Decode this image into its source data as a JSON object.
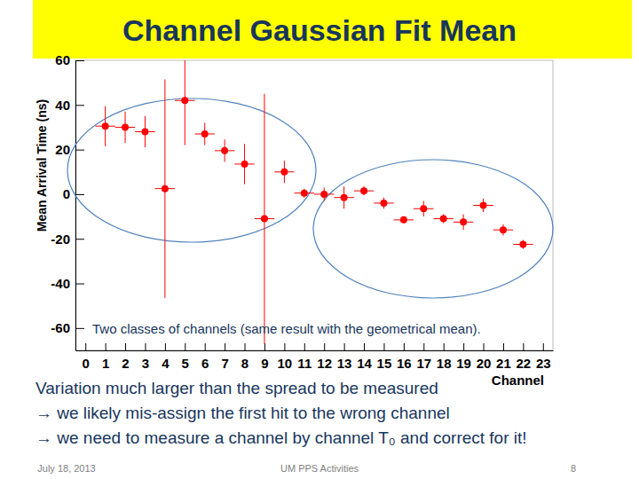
{
  "chart_data": {
    "type": "scatter",
    "title": "Channel Gaussian Fit Mean",
    "x_label": "Channel",
    "y_label": "Mean Arrival Time (ns)",
    "annotation": "Two classes of channels (same result with the geometrical mean).",
    "x": [
      1,
      2,
      3,
      4,
      5,
      6,
      7,
      8,
      9,
      10,
      11,
      12,
      13,
      14,
      15,
      16,
      17,
      18,
      19,
      20,
      21,
      22
    ],
    "values": [
      30.5,
      30,
      28,
      2.5,
      42,
      27,
      19.5,
      13.5,
      -11,
      10,
      0.5,
      0,
      -1.5,
      1.5,
      -4,
      -11.5,
      -6.5,
      -11,
      -12.5,
      -5,
      -16,
      -22.5
    ],
    "errors": [
      9,
      7,
      7,
      49,
      20,
      5,
      5,
      9,
      56,
      5,
      2,
      3,
      5,
      2,
      2.5,
      1.5,
      3.5,
      2,
      3.5,
      3,
      2.5,
      2
    ],
    "x_errors": [
      0.5,
      0.5,
      0.5,
      0.5,
      0.5,
      0.5,
      0.5,
      0.5,
      0.5,
      0.5,
      0.5,
      0.5,
      0.5,
      0.5,
      0.5,
      0.5,
      0.5,
      0.5,
      0.5,
      0.5,
      0.5,
      0.5
    ],
    "xlim": [
      -0.5,
      23.5
    ],
    "ylim": [
      -70,
      60
    ],
    "xticks": [
      0,
      1,
      2,
      3,
      4,
      5,
      6,
      7,
      8,
      9,
      10,
      11,
      12,
      13,
      14,
      15,
      16,
      17,
      18,
      19,
      20,
      21,
      22,
      23
    ],
    "yticks": [
      -60,
      -40,
      -20,
      0,
      20,
      40,
      60
    ],
    "color": "#ff0000",
    "marker": "circle"
  },
  "slide": {
    "lines": [
      "Variation much larger than the spread to be measured",
      "→ we likely mis-assign the first hit to the wrong channel",
      "→ we need to measure a channel by channel T₀ and correct for it!"
    ],
    "footer": {
      "date": "July 18, 2013",
      "center": "UM PPS Activities",
      "page": "8"
    }
  }
}
